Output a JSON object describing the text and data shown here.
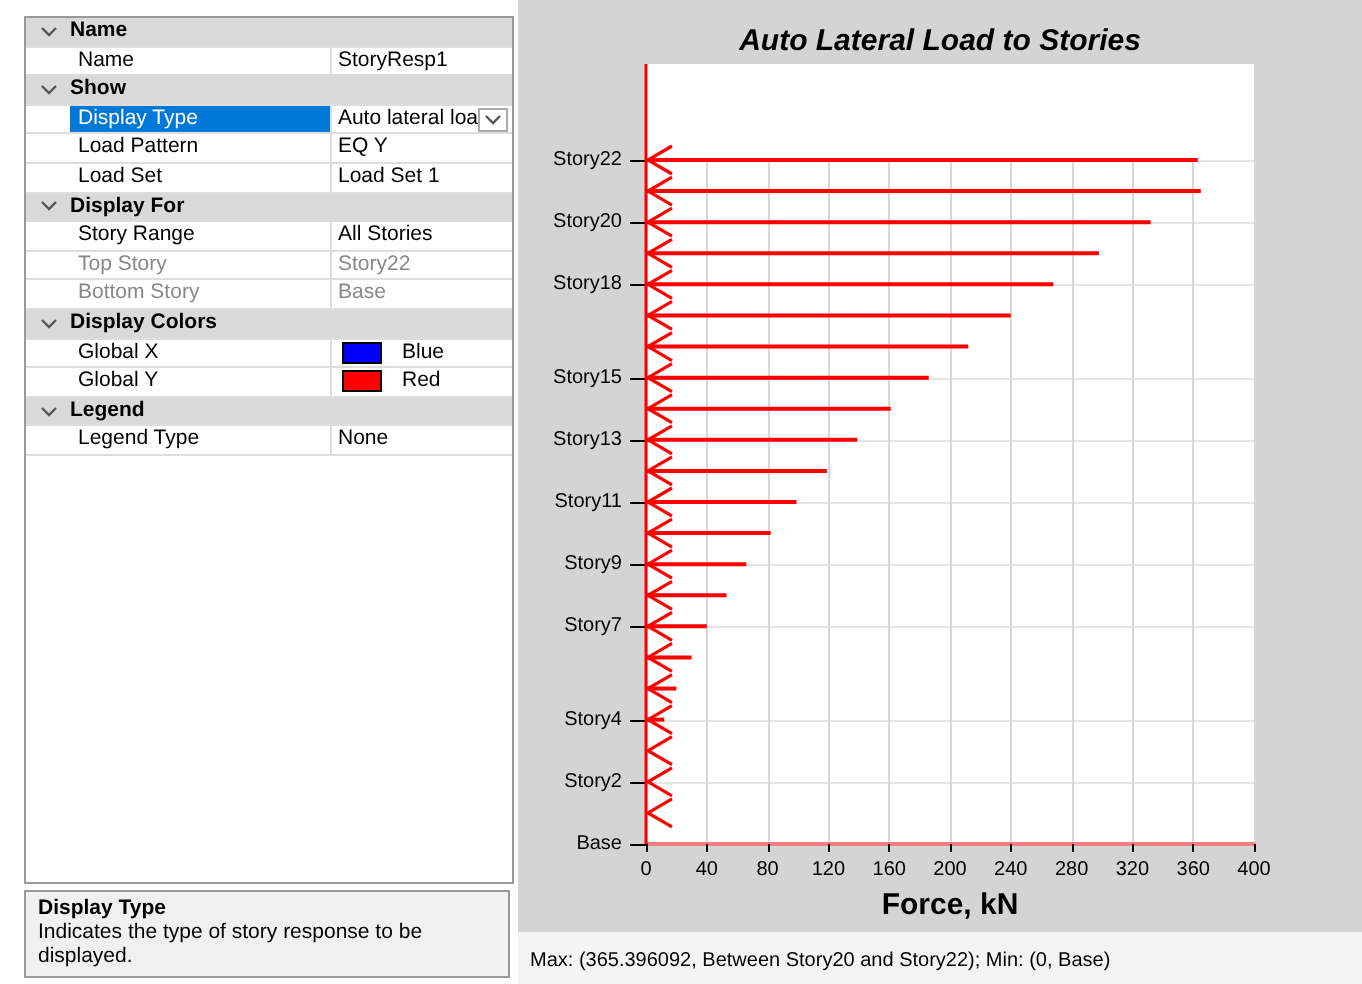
{
  "chart_data": {
    "type": "bar",
    "orientation": "horizontal",
    "title": "Auto Lateral Load to Stories",
    "xlabel": "Force, kN",
    "categories": [
      "Story22",
      null,
      "Story20",
      null,
      "Story18",
      null,
      null,
      "Story15",
      null,
      "Story13",
      null,
      "Story11",
      null,
      "Story9",
      null,
      "Story7",
      null,
      null,
      "Story4",
      null,
      "Story2",
      null,
      "Base"
    ],
    "values": [
      363,
      365,
      332,
      298,
      268,
      240,
      212,
      186,
      161,
      139,
      119,
      99,
      82,
      66,
      53,
      40,
      30,
      20,
      12,
      null,
      null,
      null,
      null
    ],
    "color": "#ff0000",
    "xlim": [
      0,
      400
    ],
    "xticks": [
      0,
      40,
      80,
      120,
      160,
      200,
      240,
      280,
      320,
      360,
      400
    ],
    "grid": true,
    "annotations": [
      "Name",
      "Name",
      "StoryResp1",
      "Show",
      "Display Type",
      "Auto lateral loa",
      "Load Pattern",
      "EQ Y",
      "Load Set",
      "Load Set 1",
      "Display For",
      "Story Range",
      "All Stories",
      "Top Story",
      "Story22",
      "Bottom Story",
      "Base",
      "Display Colors",
      "Global X",
      "Blue",
      "Global Y",
      "Red",
      "Legend",
      "Legend Type",
      "None",
      "Display Type",
      "Indicates the type of story response to be displayed.",
      "Max: (365.396092, Between Story20 and Story22);   Min: (0, Base)"
    ]
  }
}
